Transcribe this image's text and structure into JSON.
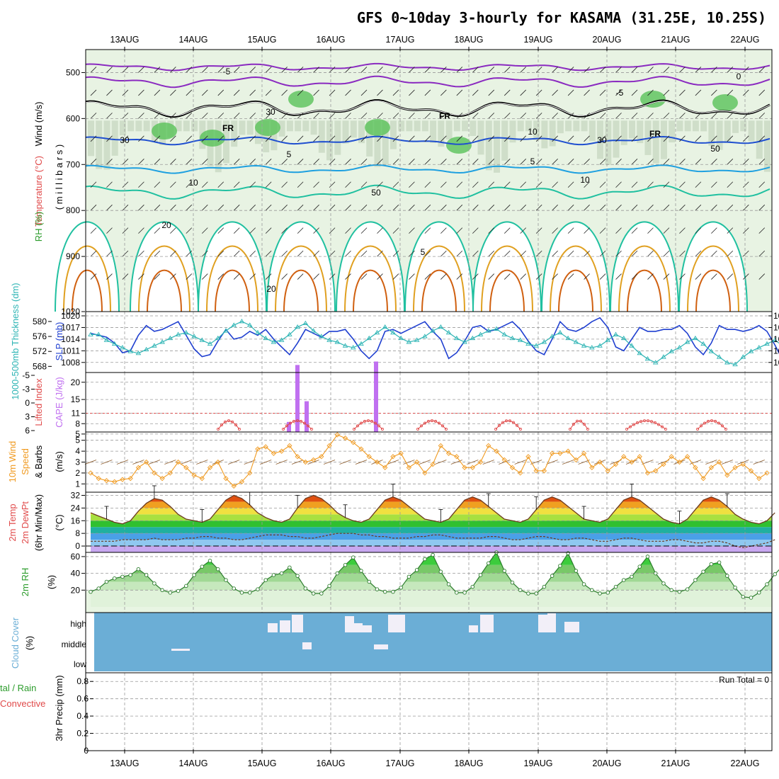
{
  "title": "GFS 0~10day 3-hourly for KASAMA (31.25E, 10.25S)",
  "colors": {
    "wind": "#333333",
    "temperature": "#e04a4a",
    "rh": "#2c9c2c",
    "thickness": "#2fb5b5",
    "slp": "#1f3fd0",
    "cape": "#c070f0",
    "lifted": "#e04a4a",
    "wind10": "#f09a20",
    "rh2m": "#2c9c2c",
    "cloud": "#6baed6",
    "precip_total": "#2c9c2c",
    "precip_conv": "#e04a4a"
  },
  "dates": [
    "13AUG",
    "14AUG",
    "15AUG",
    "16AUG",
    "17AUG",
    "18AUG",
    "19AUG",
    "20AUG",
    "21AUG",
    "22AUG"
  ],
  "panels": {
    "upper": {
      "label_wind": "Wind (m/s)",
      "label_temp": "Temperature (°C)",
      "label_rh": "RH (%)",
      "label_mb": "( m i l l i b a r s )",
      "contour_labels": [
        "-5",
        "-5",
        "0",
        "FR",
        "FR",
        "FR",
        "5",
        "5",
        "10",
        "10",
        "20",
        "20",
        "30",
        "30",
        "50",
        "5",
        "30",
        "10",
        "50"
      ]
    },
    "slp": {
      "label_thk": "1000-500mb Thickness (dm)",
      "label_slp": "SLP (mb)"
    },
    "cape": {
      "label_li": "Lifted Index",
      "label_cape": "CAPE (J/kg)"
    },
    "wind10": {
      "label_a": "10m Wind",
      "label_b": "Speed",
      "label_c": "& Barbs",
      "unit": "(m/s)"
    },
    "temp2m": {
      "label_a": "2m Temp",
      "label_b": "2m DewPt",
      "label_c": "(6hr Min/Max)",
      "unit": "(°C)"
    },
    "rh2m": {
      "label": "2m RH",
      "unit": "(%)"
    },
    "cloud": {
      "label": "Cloud Cover",
      "unit": "(%)",
      "levels": [
        "high",
        "middle",
        "low"
      ]
    },
    "precip": {
      "label_total": "tal / Rain",
      "label_conv": "Convective",
      "label_axis": "3hr Precip (mm)",
      "run_total": "Run Total = 0"
    }
  },
  "chart_data": [
    {
      "panel": "upper-air",
      "type": "area",
      "ylabel": "millibars",
      "ylim": [
        1020,
        450
      ],
      "yticks": [
        500,
        600,
        700,
        800,
        900,
        1020
      ],
      "contours_temperature_C": [
        -5,
        0,
        5,
        10,
        20,
        30
      ],
      "freezing_level_label": "FR",
      "rh_shading_percent": [
        30,
        50,
        70,
        90
      ]
    },
    {
      "panel": "slp-thickness",
      "type": "line",
      "x_start": "12AUG 12Z",
      "x_step_hours": 3,
      "series": [
        {
          "name": "SLP (mb)",
          "ylim": [
            1006.5,
            1020
          ],
          "yticks": [
            1008,
            1011,
            1014,
            1017,
            1020
          ],
          "values": [
            1015.5,
            1015.0,
            1014.5,
            1013.0,
            1010.5,
            1011.0,
            1015.0,
            1017.5,
            1016.0,
            1016.5,
            1017.5,
            1018.5,
            1015.0,
            1011.5,
            1009.5,
            1010.0,
            1013.5,
            1016.5,
            1014.0,
            1014.5,
            1016.0,
            1015.0,
            1016.5,
            1014.0,
            1012.0,
            1010.0,
            1013.0,
            1016.5,
            1015.5,
            1014.5,
            1016.0,
            1016.0,
            1016.5,
            1014.0,
            1011.0,
            1009.0,
            1011.0,
            1016.0,
            1016.5,
            1015.5,
            1016.5,
            1017.5,
            1018.5,
            1016.0,
            1014.0,
            1009.0,
            1010.5,
            1013.5,
            1017.0,
            1017.5,
            1016.0,
            1016.5,
            1017.5,
            1018.5,
            1016.5,
            1013.5,
            1011.0,
            1010.0,
            1014.0,
            1018.5,
            1016.5,
            1016.0,
            1017.0,
            1018.5,
            1019.5,
            1017.0,
            1012.0,
            1011.0,
            1014.0,
            1017.0,
            1016.0,
            1016.0,
            1016.5,
            1016.5,
            1017.5,
            1015.5,
            1012.0,
            1010.0,
            1013.0,
            1017.5,
            1016.5,
            1016.5,
            1016.0,
            1016.5,
            1017.5,
            1016.0,
            1012.5,
            1008.5,
            1012.0,
            1016.0,
            1015.5,
            1016.0,
            1016.5,
            1017.0
          ]
        },
        {
          "name": "1000-500mb Thickness (dm)",
          "ylim": [
            567.5,
            581.5
          ],
          "yticks": [
            568,
            572,
            576,
            580
          ],
          "values": [
            576.5,
            576.5,
            575.0,
            574.0,
            573.0,
            572.0,
            571.5,
            572.5,
            573.5,
            574.5,
            575.5,
            576.5,
            577.0,
            576.0,
            575.0,
            574.0,
            575.5,
            577.5,
            579.0,
            580.0,
            579.0,
            577.0,
            575.5,
            574.5,
            575.0,
            576.5,
            578.5,
            579.5,
            577.5,
            576.0,
            575.0,
            574.5,
            573.5,
            573.0,
            574.0,
            575.5,
            577.0,
            578.5,
            577.0,
            575.5,
            574.5,
            575.0,
            576.0,
            577.5,
            578.5,
            577.0,
            575.5,
            574.5,
            575.5,
            576.5,
            577.5,
            578.0,
            576.5,
            575.5,
            575.0,
            574.0,
            573.5,
            574.5,
            576.0,
            577.0,
            575.5,
            574.5,
            573.5,
            573.0,
            573.5,
            575.0,
            576.5,
            575.5,
            573.5,
            571.5,
            570.0,
            569.0,
            570.5,
            572.0,
            573.0,
            574.5,
            575.5,
            574.0,
            572.0,
            570.5,
            569.0,
            568.5,
            570.5,
            572.0,
            573.0,
            574.0,
            575.0,
            573.5,
            572.0,
            570.0,
            569.5,
            570.0,
            571.0,
            572.0
          ]
        }
      ]
    },
    {
      "panel": "cape-lifted-index",
      "type": "bar",
      "series": [
        {
          "name": "CAPE (J/kg)",
          "yticks": [
            5,
            8,
            11,
            15,
            20
          ],
          "bars": [
            {
              "x": "15AUG 09Z",
              "value": 3.5
            },
            {
              "x": "15AUG 12Z",
              "value": 20
            },
            {
              "x": "15AUG 15Z",
              "value": 9.5
            },
            {
              "x": "16AUG 15Z",
              "value": 21
            }
          ]
        },
        {
          "name": "Lifted Index",
          "yticks": [
            6,
            3,
            0,
            -3,
            -5
          ]
        }
      ]
    },
    {
      "panel": "10m-wind",
      "type": "line",
      "ylabel": "(m/s)",
      "ylim": [
        0.5,
        5.5
      ],
      "yticks": [
        1,
        2,
        3,
        4,
        5
      ],
      "values": [
        2.0,
        1.5,
        1.3,
        1.2,
        1.4,
        1.5,
        2.5,
        3.0,
        2.0,
        1.5,
        2.0,
        3.0,
        2.5,
        1.8,
        1.5,
        2.5,
        3.0,
        1.5,
        0.8,
        1.2,
        2.0,
        4.2,
        4.4,
        3.8,
        4.0,
        4.5,
        3.5,
        3.0,
        3.2,
        3.5,
        4.5,
        5.5,
        5.2,
        4.8,
        4.2,
        3.5,
        3.0,
        2.5,
        3.5,
        3.8,
        2.5,
        3.0,
        2.0,
        2.8,
        4.5,
        3.8,
        3.5,
        2.5,
        2.5,
        3.0,
        4.5,
        4.0,
        3.2,
        2.5,
        2.0,
        3.5,
        2.2,
        2.2,
        3.8,
        3.8,
        4.0,
        3.2,
        3.8,
        2.5,
        3.0,
        2.2,
        2.8,
        3.5,
        3.0,
        3.5,
        2.0,
        2.2,
        2.8,
        3.5,
        3.0,
        3.5,
        2.5,
        1.5,
        2.5,
        3.0,
        1.8,
        2.5,
        2.8,
        2.2,
        1.5,
        2.0
      ]
    },
    {
      "panel": "2m-temp-dewpoint",
      "type": "area",
      "ylabel": "(°C)",
      "ylim": [
        -4,
        34
      ],
      "yticks": [
        0,
        8,
        16,
        24,
        32
      ],
      "series": [
        {
          "name": "2m Temp",
          "values": [
            21,
            19,
            17,
            15,
            14,
            16,
            22,
            27,
            30,
            29,
            25,
            20,
            17,
            16,
            15,
            17,
            23,
            29,
            32,
            30,
            26,
            21,
            18,
            16,
            15,
            17,
            24,
            30,
            32,
            30,
            26,
            21,
            18,
            16,
            15,
            17,
            23,
            29,
            31,
            29,
            25,
            21,
            17,
            16,
            15,
            17,
            23,
            29,
            31,
            29,
            25,
            21,
            17,
            16,
            15,
            17,
            23,
            29,
            31,
            29,
            25,
            21,
            17,
            16,
            15,
            17,
            23,
            29,
            31,
            29,
            25,
            21,
            17,
            15,
            14,
            17,
            23,
            29,
            31,
            29,
            25,
            20,
            17,
            15,
            14,
            16,
            21
          ]
        },
        {
          "name": "2m DewPt",
          "values": [
            3,
            3,
            3,
            3,
            4,
            4,
            4,
            4,
            5,
            4,
            4,
            4,
            5,
            5,
            6,
            6,
            5,
            5,
            4,
            4,
            5,
            6,
            7,
            7,
            7,
            6,
            6,
            5,
            5,
            6,
            7,
            8,
            8,
            8,
            7,
            7,
            6,
            6,
            5,
            5,
            5,
            6,
            6,
            7,
            7,
            6,
            5,
            5,
            5,
            5,
            6,
            6,
            5,
            4,
            4,
            5,
            6,
            6,
            5,
            4,
            4,
            5,
            5,
            4,
            3,
            3,
            4,
            5,
            5,
            4,
            3,
            3,
            3,
            4,
            4,
            3,
            2,
            2,
            3,
            3,
            2,
            0,
            -1,
            0,
            1,
            2,
            4
          ]
        }
      ]
    },
    {
      "panel": "2m-rh",
      "type": "area",
      "ylabel": "(%)",
      "ylim": [
        0,
        65
      ],
      "yticks": [
        20,
        40,
        60
      ],
      "values": [
        18,
        22,
        30,
        34,
        36,
        38,
        45,
        38,
        28,
        20,
        17,
        19,
        25,
        38,
        48,
        55,
        45,
        32,
        22,
        17,
        17,
        21,
        32,
        38,
        40,
        47,
        37,
        22,
        16,
        16,
        25,
        40,
        50,
        59,
        43,
        30,
        21,
        18,
        18,
        23,
        36,
        44,
        57,
        62,
        42,
        27,
        17,
        17,
        24,
        38,
        52,
        65,
        43,
        29,
        20,
        16,
        16,
        24,
        37,
        49,
        64,
        43,
        27,
        20,
        16,
        17,
        24,
        32,
        36,
        48,
        60,
        40,
        28,
        20,
        18,
        21,
        32,
        42,
        51,
        53,
        37,
        23,
        12,
        11,
        17,
        27,
        39,
        49,
        34
      ]
    },
    {
      "panel": "cloud-cover",
      "type": "heatmap",
      "levels": [
        "high",
        "middle",
        "low"
      ]
    },
    {
      "panel": "3hr-precip",
      "type": "bar",
      "ylabel": "3hr Precip (mm)",
      "ylim": [
        0,
        0.9
      ],
      "yticks": [
        0,
        0.2,
        0.4,
        0.6,
        0.8
      ],
      "values": [],
      "run_total": "Run Total = 0"
    }
  ]
}
